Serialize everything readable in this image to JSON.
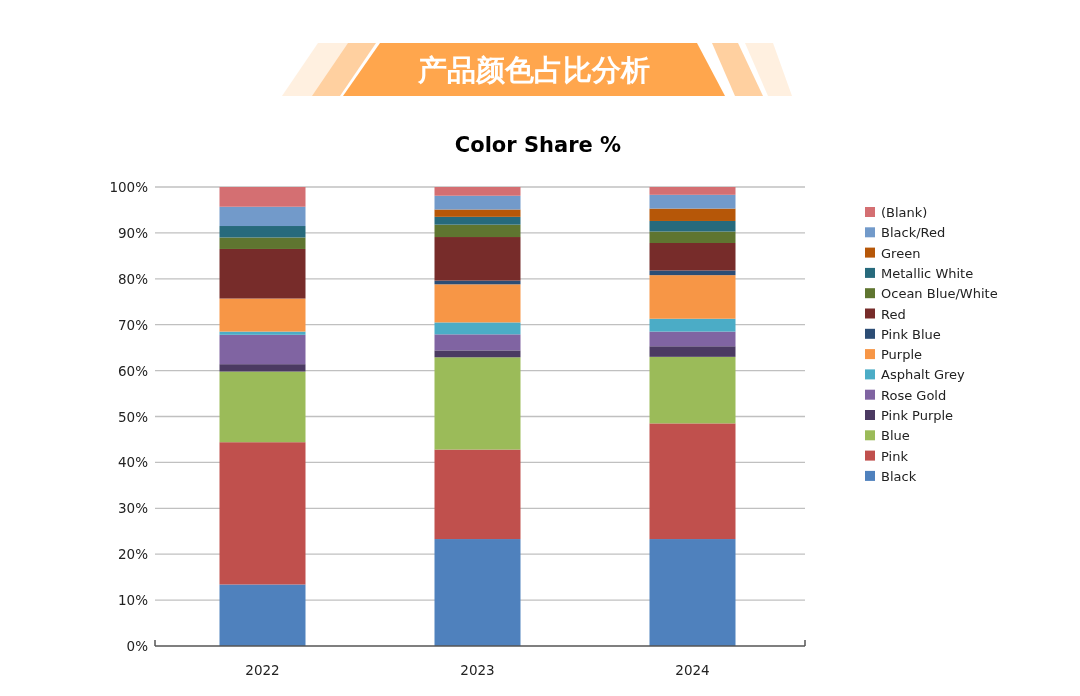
{
  "chart_data": {
    "type": "bar",
    "stacked": true,
    "title": "产品颜色占比分析",
    "subtitle": "Color Share %",
    "categories": [
      "2022",
      "2023",
      "2024"
    ],
    "series": [
      {
        "name": "Black",
        "color": "#4f81bd",
        "values": [
          13.4,
          23.3,
          23.3
        ]
      },
      {
        "name": "Pink",
        "color": "#c0504d",
        "values": [
          31.0,
          19.5,
          25.2
        ]
      },
      {
        "name": "Blue",
        "color": "#9bbb59",
        "values": [
          15.4,
          20.1,
          14.5
        ]
      },
      {
        "name": "Pink Purple",
        "color": "#4b3a62",
        "values": [
          1.6,
          1.5,
          2.3
        ]
      },
      {
        "name": "Rose Gold",
        "color": "#8064a2",
        "values": [
          6.4,
          3.5,
          3.2
        ]
      },
      {
        "name": "Asphalt Grey",
        "color": "#4bacc6",
        "values": [
          0.7,
          2.6,
          2.8
        ]
      },
      {
        "name": "Purple",
        "color": "#f79646",
        "values": [
          7.2,
          8.3,
          9.5
        ]
      },
      {
        "name": "Pink Blue",
        "color": "#2c4d75",
        "values": [
          0,
          0.8,
          1.0
        ]
      },
      {
        "name": "Red",
        "color": "#772c2a",
        "values": [
          10.8,
          9.5,
          6.0
        ]
      },
      {
        "name": "Ocean Blue/White",
        "color": "#5f7530",
        "values": [
          2.5,
          2.7,
          2.5
        ]
      },
      {
        "name": "Metallic White",
        "color": "#276a7c",
        "values": [
          2.5,
          1.7,
          2.3
        ]
      },
      {
        "name": "Green",
        "color": "#b65708",
        "values": [
          0,
          1.6,
          2.7
        ]
      },
      {
        "name": "Black/Red",
        "color": "#729aca",
        "values": [
          4.2,
          3.0,
          3.0
        ]
      },
      {
        "name": "(Blank)",
        "color": "#d46f72",
        "values": [
          4.3,
          1.9,
          1.7
        ]
      }
    ],
    "ylim": [
      0,
      100
    ],
    "yticks": [
      {
        "value": 0,
        "label": "0%"
      },
      {
        "value": 10,
        "label": "10%"
      },
      {
        "value": 20,
        "label": "20%"
      },
      {
        "value": 30,
        "label": "30%"
      },
      {
        "value": 40,
        "label": "40%"
      },
      {
        "value": 50,
        "label": "50%"
      },
      {
        "value": 60,
        "label": "60%"
      },
      {
        "value": 70,
        "label": "70%"
      },
      {
        "value": 80,
        "label": "80%"
      },
      {
        "value": 90,
        "label": "90%"
      },
      {
        "value": 100,
        "label": "100%"
      }
    ],
    "grid": "y",
    "legend": "right"
  }
}
